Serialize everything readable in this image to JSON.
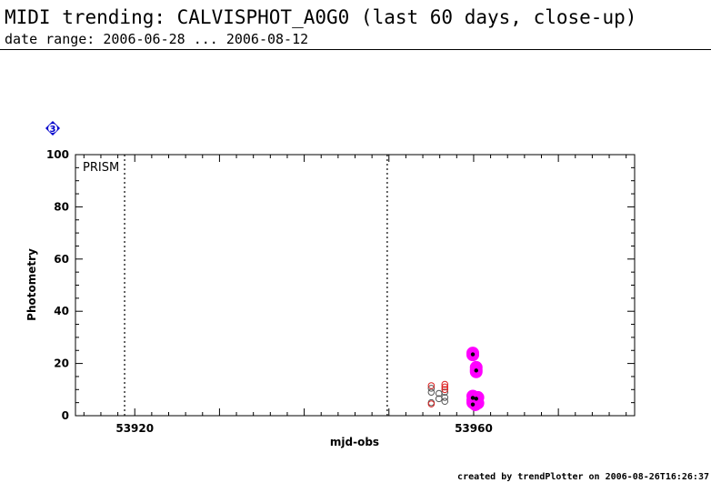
{
  "header": {
    "title": "MIDI trending: CALVISPHOT_A0G0 (last 60 days, close-up)",
    "subtitle": "date range: 2006-06-28 ... 2006-08-12"
  },
  "footer": {
    "text": "created by trendPlotter on 2006-08-26T16:26:37"
  },
  "badge": {
    "label": "3",
    "color": "#0000cc"
  },
  "chart_data": {
    "type": "scatter",
    "xlabel": "mjd-obs",
    "ylabel": "Photometry",
    "xlim": [
      53913,
      53979
    ],
    "ylim": [
      0,
      100
    ],
    "x_ticks": [
      53920,
      53960
    ],
    "x_tick_labels": [
      "53920",
      "53960"
    ],
    "y_ticks": [
      0,
      20,
      40,
      60,
      80,
      100
    ],
    "y_tick_labels": [
      "0",
      "20",
      "40",
      "60",
      "80",
      "100"
    ],
    "grid": false,
    "annotation": {
      "text": "PRISM"
    },
    "vlines": [
      53918.8,
      53949.8
    ],
    "series": [
      {
        "marker": "open-circle",
        "color": "#555555",
        "points": [
          {
            "x": 53955.0,
            "y": 10.5
          },
          {
            "x": 53955.0,
            "y": 9.0
          },
          {
            "x": 53955.0,
            "y": 5.0
          },
          {
            "x": 53955.9,
            "y": 8.5
          },
          {
            "x": 53955.9,
            "y": 6.5
          },
          {
            "x": 53956.6,
            "y": 9.0
          },
          {
            "x": 53956.6,
            "y": 7.0
          },
          {
            "x": 53956.6,
            "y": 5.5
          }
        ]
      },
      {
        "marker": "open-circle",
        "color": "#dd2222",
        "points": [
          {
            "x": 53955.0,
            "y": 11.5
          },
          {
            "x": 53955.0,
            "y": 4.5
          },
          {
            "x": 53956.6,
            "y": 12.0
          },
          {
            "x": 53956.6,
            "y": 11.0
          },
          {
            "x": 53956.6,
            "y": 10.0
          }
        ]
      },
      {
        "marker": "filled-circle",
        "color": "#ff00ff",
        "points": [
          {
            "x": 53959.9,
            "y": 24.0
          },
          {
            "x": 53959.9,
            "y": 23.3
          },
          {
            "x": 53960.3,
            "y": 18.5
          },
          {
            "x": 53960.3,
            "y": 17.5
          },
          {
            "x": 53960.3,
            "y": 16.8
          },
          {
            "x": 53959.9,
            "y": 7.5
          },
          {
            "x": 53960.5,
            "y": 7.0
          },
          {
            "x": 53959.9,
            "y": 6.0
          },
          {
            "x": 53959.9,
            "y": 5.0
          },
          {
            "x": 53960.5,
            "y": 4.8
          },
          {
            "x": 53960.2,
            "y": 4.2
          }
        ]
      },
      {
        "marker": "dot",
        "color": "#000000",
        "points": [
          {
            "x": 53959.9,
            "y": 23.5
          },
          {
            "x": 53960.3,
            "y": 17.3
          },
          {
            "x": 53959.9,
            "y": 6.8
          },
          {
            "x": 53960.3,
            "y": 6.5
          },
          {
            "x": 53959.9,
            "y": 4.3
          }
        ]
      }
    ]
  }
}
